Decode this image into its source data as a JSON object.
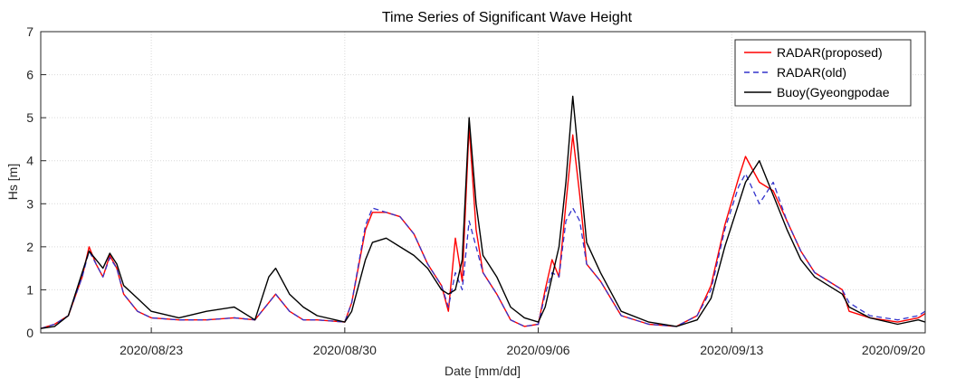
{
  "chart_data": {
    "type": "line",
    "title": "Time Series of Significant Wave Height",
    "xlabel": "Date [mm/dd]",
    "ylabel": "Hs [m]",
    "xlim": [
      "2020-08-19",
      "2020-09-20"
    ],
    "ylim": [
      0,
      7
    ],
    "yticks": [
      0,
      1,
      2,
      3,
      4,
      5,
      6,
      7
    ],
    "xticks": [
      {
        "date": "2020-08-23",
        "label": "2020/08/23"
      },
      {
        "date": "2020-08-30",
        "label": "2020/08/30"
      },
      {
        "date": "2020-09-06",
        "label": "2020/09/06"
      },
      {
        "date": "2020-09-13",
        "label": "2020/09/13"
      },
      {
        "date": "2020-09-20",
        "label": "2020/09/20"
      }
    ],
    "grid": true,
    "legend_position": "top-right",
    "series": [
      {
        "name": "RADAR(proposed)",
        "color": "#ff0000",
        "style": "solid",
        "points": [
          [
            "2020-08-19 00:00",
            0.1
          ],
          [
            "2020-08-19 12:00",
            0.2
          ],
          [
            "2020-08-20 00:00",
            0.4
          ],
          [
            "2020-08-20 12:00",
            1.3
          ],
          [
            "2020-08-20 18:00",
            2.0
          ],
          [
            "2020-08-21 00:00",
            1.6
          ],
          [
            "2020-08-21 06:00",
            1.3
          ],
          [
            "2020-08-21 12:00",
            1.8
          ],
          [
            "2020-08-21 18:00",
            1.5
          ],
          [
            "2020-08-22 00:00",
            0.9
          ],
          [
            "2020-08-22 12:00",
            0.5
          ],
          [
            "2020-08-23 00:00",
            0.35
          ],
          [
            "2020-08-24 00:00",
            0.3
          ],
          [
            "2020-08-25 00:00",
            0.3
          ],
          [
            "2020-08-26 00:00",
            0.35
          ],
          [
            "2020-08-26 18:00",
            0.3
          ],
          [
            "2020-08-27 06:00",
            0.7
          ],
          [
            "2020-08-27 12:00",
            0.9
          ],
          [
            "2020-08-28 00:00",
            0.5
          ],
          [
            "2020-08-28 12:00",
            0.3
          ],
          [
            "2020-08-29 00:00",
            0.3
          ],
          [
            "2020-08-30 00:00",
            0.25
          ],
          [
            "2020-08-30 06:00",
            0.7
          ],
          [
            "2020-08-30 18:00",
            2.4
          ],
          [
            "2020-08-31 00:00",
            2.8
          ],
          [
            "2020-08-31 12:00",
            2.8
          ],
          [
            "2020-09-01 00:00",
            2.7
          ],
          [
            "2020-09-01 12:00",
            2.3
          ],
          [
            "2020-09-02 00:00",
            1.6
          ],
          [
            "2020-09-02 12:00",
            1.1
          ],
          [
            "2020-09-02 18:00",
            0.5
          ],
          [
            "2020-09-03 00:00",
            2.2
          ],
          [
            "2020-09-03 06:00",
            1.2
          ],
          [
            "2020-09-03 12:00",
            4.8
          ],
          [
            "2020-09-03 18:00",
            2.4
          ],
          [
            "2020-09-04 00:00",
            1.4
          ],
          [
            "2020-09-04 12:00",
            0.9
          ],
          [
            "2020-09-05 00:00",
            0.3
          ],
          [
            "2020-09-05 12:00",
            0.15
          ],
          [
            "2020-09-06 00:00",
            0.2
          ],
          [
            "2020-09-06 06:00",
            1.0
          ],
          [
            "2020-09-06 12:00",
            1.7
          ],
          [
            "2020-09-06 18:00",
            1.3
          ],
          [
            "2020-09-07 00:00",
            3.0
          ],
          [
            "2020-09-07 06:00",
            4.6
          ],
          [
            "2020-09-07 12:00",
            3.2
          ],
          [
            "2020-09-07 18:00",
            1.6
          ],
          [
            "2020-09-08 06:00",
            1.2
          ],
          [
            "2020-09-09 00:00",
            0.4
          ],
          [
            "2020-09-10 00:00",
            0.2
          ],
          [
            "2020-09-11 00:00",
            0.15
          ],
          [
            "2020-09-11 18:00",
            0.4
          ],
          [
            "2020-09-12 06:00",
            1.1
          ],
          [
            "2020-09-12 18:00",
            2.5
          ],
          [
            "2020-09-13 06:00",
            3.6
          ],
          [
            "2020-09-13 12:00",
            4.1
          ],
          [
            "2020-09-14 00:00",
            3.5
          ],
          [
            "2020-09-14 12:00",
            3.3
          ],
          [
            "2020-09-15 00:00",
            2.6
          ],
          [
            "2020-09-15 12:00",
            1.9
          ],
          [
            "2020-09-16 00:00",
            1.4
          ],
          [
            "2020-09-16 12:00",
            1.2
          ],
          [
            "2020-09-17 00:00",
            1.0
          ],
          [
            "2020-09-17 06:00",
            0.5
          ],
          [
            "2020-09-18 00:00",
            0.35
          ],
          [
            "2020-09-19 00:00",
            0.25
          ],
          [
            "2020-09-19 18:00",
            0.35
          ],
          [
            "2020-09-20 00:00",
            0.45
          ]
        ]
      },
      {
        "name": "RADAR(old)",
        "color": "#3333cc",
        "style": "dashed",
        "points": [
          [
            "2020-08-19 00:00",
            0.1
          ],
          [
            "2020-08-19 12:00",
            0.2
          ],
          [
            "2020-08-20 00:00",
            0.4
          ],
          [
            "2020-08-20 12:00",
            1.3
          ],
          [
            "2020-08-20 18:00",
            1.9
          ],
          [
            "2020-08-21 00:00",
            1.6
          ],
          [
            "2020-08-21 06:00",
            1.3
          ],
          [
            "2020-08-21 12:00",
            1.75
          ],
          [
            "2020-08-21 18:00",
            1.5
          ],
          [
            "2020-08-22 00:00",
            0.9
          ],
          [
            "2020-08-22 12:00",
            0.5
          ],
          [
            "2020-08-23 00:00",
            0.35
          ],
          [
            "2020-08-24 00:00",
            0.3
          ],
          [
            "2020-08-25 00:00",
            0.3
          ],
          [
            "2020-08-26 00:00",
            0.35
          ],
          [
            "2020-08-26 18:00",
            0.3
          ],
          [
            "2020-08-27 06:00",
            0.7
          ],
          [
            "2020-08-27 12:00",
            0.9
          ],
          [
            "2020-08-28 00:00",
            0.5
          ],
          [
            "2020-08-28 12:00",
            0.3
          ],
          [
            "2020-08-29 00:00",
            0.3
          ],
          [
            "2020-08-30 00:00",
            0.25
          ],
          [
            "2020-08-30 06:00",
            0.7
          ],
          [
            "2020-08-30 18:00",
            2.5
          ],
          [
            "2020-08-31 00:00",
            2.9
          ],
          [
            "2020-08-31 12:00",
            2.8
          ],
          [
            "2020-09-01 00:00",
            2.7
          ],
          [
            "2020-09-01 12:00",
            2.3
          ],
          [
            "2020-09-02 00:00",
            1.6
          ],
          [
            "2020-09-02 12:00",
            1.1
          ],
          [
            "2020-09-02 18:00",
            0.6
          ],
          [
            "2020-09-03 00:00",
            1.4
          ],
          [
            "2020-09-03 06:00",
            1.0
          ],
          [
            "2020-09-03 12:00",
            2.6
          ],
          [
            "2020-09-03 18:00",
            2.0
          ],
          [
            "2020-09-04 00:00",
            1.4
          ],
          [
            "2020-09-04 12:00",
            0.9
          ],
          [
            "2020-09-05 00:00",
            0.3
          ],
          [
            "2020-09-05 12:00",
            0.15
          ],
          [
            "2020-09-06 00:00",
            0.2
          ],
          [
            "2020-09-06 06:00",
            0.9
          ],
          [
            "2020-09-06 12:00",
            1.4
          ],
          [
            "2020-09-06 18:00",
            1.3
          ],
          [
            "2020-09-07 00:00",
            2.6
          ],
          [
            "2020-09-07 06:00",
            2.9
          ],
          [
            "2020-09-07 12:00",
            2.6
          ],
          [
            "2020-09-07 18:00",
            1.6
          ],
          [
            "2020-09-08 06:00",
            1.2
          ],
          [
            "2020-09-09 00:00",
            0.4
          ],
          [
            "2020-09-10 00:00",
            0.2
          ],
          [
            "2020-09-11 00:00",
            0.15
          ],
          [
            "2020-09-11 18:00",
            0.4
          ],
          [
            "2020-09-12 06:00",
            1.0
          ],
          [
            "2020-09-12 18:00",
            2.4
          ],
          [
            "2020-09-13 06:00",
            3.4
          ],
          [
            "2020-09-13 12:00",
            3.7
          ],
          [
            "2020-09-14 00:00",
            3.0
          ],
          [
            "2020-09-14 12:00",
            3.5
          ],
          [
            "2020-09-15 00:00",
            2.6
          ],
          [
            "2020-09-15 12:00",
            1.9
          ],
          [
            "2020-09-16 00:00",
            1.4
          ],
          [
            "2020-09-16 12:00",
            1.2
          ],
          [
            "2020-09-17 00:00",
            1.0
          ],
          [
            "2020-09-17 06:00",
            0.7
          ],
          [
            "2020-09-18 00:00",
            0.4
          ],
          [
            "2020-09-19 00:00",
            0.3
          ],
          [
            "2020-09-19 18:00",
            0.4
          ],
          [
            "2020-09-20 00:00",
            0.5
          ]
        ]
      },
      {
        "name": "Buoy(Gyeongpodae",
        "color": "#000000",
        "style": "solid",
        "points": [
          [
            "2020-08-19 00:00",
            0.1
          ],
          [
            "2020-08-19 12:00",
            0.15
          ],
          [
            "2020-08-20 00:00",
            0.4
          ],
          [
            "2020-08-20 12:00",
            1.4
          ],
          [
            "2020-08-20 18:00",
            1.9
          ],
          [
            "2020-08-21 00:00",
            1.7
          ],
          [
            "2020-08-21 06:00",
            1.5
          ],
          [
            "2020-08-21 12:00",
            1.85
          ],
          [
            "2020-08-21 18:00",
            1.6
          ],
          [
            "2020-08-22 00:00",
            1.1
          ],
          [
            "2020-08-22 12:00",
            0.8
          ],
          [
            "2020-08-23 00:00",
            0.5
          ],
          [
            "2020-08-24 00:00",
            0.35
          ],
          [
            "2020-08-25 00:00",
            0.5
          ],
          [
            "2020-08-26 00:00",
            0.6
          ],
          [
            "2020-08-26 18:00",
            0.3
          ],
          [
            "2020-08-27 06:00",
            1.3
          ],
          [
            "2020-08-27 12:00",
            1.5
          ],
          [
            "2020-08-28 00:00",
            0.9
          ],
          [
            "2020-08-28 12:00",
            0.6
          ],
          [
            "2020-08-29 00:00",
            0.4
          ],
          [
            "2020-08-30 00:00",
            0.25
          ],
          [
            "2020-08-30 06:00",
            0.5
          ],
          [
            "2020-08-30 18:00",
            1.7
          ],
          [
            "2020-08-31 00:00",
            2.1
          ],
          [
            "2020-08-31 12:00",
            2.2
          ],
          [
            "2020-09-01 00:00",
            2.0
          ],
          [
            "2020-09-01 12:00",
            1.8
          ],
          [
            "2020-09-02 00:00",
            1.5
          ],
          [
            "2020-09-02 12:00",
            1.0
          ],
          [
            "2020-09-02 18:00",
            0.9
          ],
          [
            "2020-09-03 00:00",
            1.0
          ],
          [
            "2020-09-03 06:00",
            1.7
          ],
          [
            "2020-09-03 12:00",
            5.0
          ],
          [
            "2020-09-03 18:00",
            3.0
          ],
          [
            "2020-09-04 00:00",
            1.8
          ],
          [
            "2020-09-04 12:00",
            1.3
          ],
          [
            "2020-09-05 00:00",
            0.6
          ],
          [
            "2020-09-05 12:00",
            0.35
          ],
          [
            "2020-09-06 00:00",
            0.25
          ],
          [
            "2020-09-06 06:00",
            0.6
          ],
          [
            "2020-09-06 12:00",
            1.3
          ],
          [
            "2020-09-06 18:00",
            2.0
          ],
          [
            "2020-09-07 00:00",
            3.5
          ],
          [
            "2020-09-07 06:00",
            5.5
          ],
          [
            "2020-09-07 12:00",
            3.8
          ],
          [
            "2020-09-07 18:00",
            2.1
          ],
          [
            "2020-09-08 06:00",
            1.4
          ],
          [
            "2020-09-09 00:00",
            0.5
          ],
          [
            "2020-09-10 00:00",
            0.25
          ],
          [
            "2020-09-11 00:00",
            0.15
          ],
          [
            "2020-09-11 18:00",
            0.3
          ],
          [
            "2020-09-12 06:00",
            0.8
          ],
          [
            "2020-09-12 18:00",
            2.0
          ],
          [
            "2020-09-13 06:00",
            3.0
          ],
          [
            "2020-09-13 12:00",
            3.5
          ],
          [
            "2020-09-14 00:00",
            4.0
          ],
          [
            "2020-09-14 12:00",
            3.2
          ],
          [
            "2020-09-15 00:00",
            2.4
          ],
          [
            "2020-09-15 12:00",
            1.7
          ],
          [
            "2020-09-16 00:00",
            1.3
          ],
          [
            "2020-09-16 12:00",
            1.1
          ],
          [
            "2020-09-17 00:00",
            0.9
          ],
          [
            "2020-09-17 06:00",
            0.6
          ],
          [
            "2020-09-18 00:00",
            0.35
          ],
          [
            "2020-09-19 00:00",
            0.2
          ],
          [
            "2020-09-19 18:00",
            0.3
          ],
          [
            "2020-09-20 00:00",
            0.25
          ]
        ]
      }
    ]
  }
}
